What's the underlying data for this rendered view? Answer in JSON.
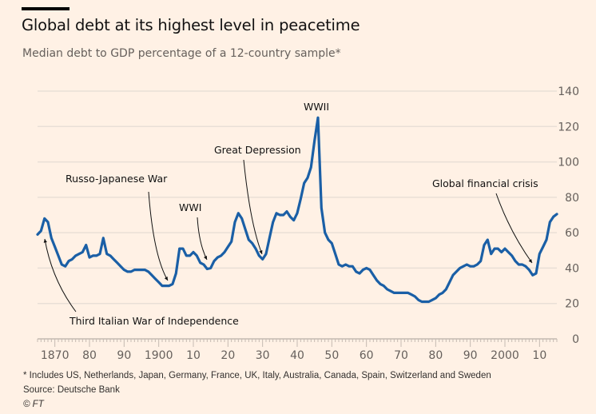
{
  "header": {
    "title": "Global debt at its highest level in peacetime",
    "subtitle": "Median debt to GDP percentage of a 12-country sample*"
  },
  "footer": {
    "note": "* Includes US, Netherlands, Japan, Germany, France, UK, Italy, Australia, Canada, Spain, Switzerland and Sweden",
    "source": "Source: Deutsche Bank",
    "copyright": "© FT"
  },
  "colors": {
    "background": "#fff1e5",
    "line": "#1a5fa6",
    "grid": "#e9dfd6",
    "axis_text": "#66605c"
  },
  "chart_data": {
    "type": "line",
    "title": "Global debt at its highest level in peacetime",
    "subtitle": "Median debt to GDP percentage of a 12-country sample*",
    "xlabel": "",
    "ylabel": "",
    "xlim": [
      1865,
      2015
    ],
    "ylim": [
      0,
      140
    ],
    "grid": true,
    "y_axis_side": "right",
    "y_ticks": [
      0,
      20,
      40,
      60,
      80,
      100,
      120,
      140
    ],
    "x_ticks": [
      {
        "year": 1870,
        "label": "1870"
      },
      {
        "year": 1880,
        "label": "80"
      },
      {
        "year": 1890,
        "label": "90"
      },
      {
        "year": 1900,
        "label": "1900"
      },
      {
        "year": 1910,
        "label": "10"
      },
      {
        "year": 1920,
        "label": "20"
      },
      {
        "year": 1930,
        "label": "30"
      },
      {
        "year": 1940,
        "label": "40"
      },
      {
        "year": 1950,
        "label": "50"
      },
      {
        "year": 1960,
        "label": "60"
      },
      {
        "year": 1970,
        "label": "70"
      },
      {
        "year": 1980,
        "label": "80"
      },
      {
        "year": 1990,
        "label": "90"
      },
      {
        "year": 2000,
        "label": "2000"
      },
      {
        "year": 2010,
        "label": "10"
      }
    ],
    "series": [
      {
        "name": "Median debt to GDP (%)",
        "x": [
          1865,
          1866,
          1867,
          1868,
          1869,
          1870,
          1871,
          1872,
          1873,
          1874,
          1875,
          1876,
          1877,
          1878,
          1879,
          1880,
          1881,
          1882,
          1883,
          1884,
          1885,
          1886,
          1887,
          1888,
          1889,
          1890,
          1891,
          1892,
          1893,
          1894,
          1895,
          1896,
          1897,
          1898,
          1899,
          1900,
          1901,
          1902,
          1903,
          1904,
          1905,
          1906,
          1907,
          1908,
          1909,
          1910,
          1911,
          1912,
          1913,
          1914,
          1915,
          1916,
          1917,
          1918,
          1919,
          1920,
          1921,
          1922,
          1923,
          1924,
          1925,
          1926,
          1927,
          1928,
          1929,
          1930,
          1931,
          1932,
          1933,
          1934,
          1935,
          1936,
          1937,
          1938,
          1939,
          1940,
          1941,
          1942,
          1943,
          1944,
          1945,
          1946,
          1947,
          1948,
          1949,
          1950,
          1951,
          1952,
          1953,
          1954,
          1955,
          1956,
          1957,
          1958,
          1959,
          1960,
          1961,
          1962,
          1963,
          1964,
          1965,
          1966,
          1967,
          1968,
          1969,
          1970,
          1971,
          1972,
          1973,
          1974,
          1975,
          1976,
          1977,
          1978,
          1979,
          1980,
          1981,
          1982,
          1983,
          1984,
          1985,
          1986,
          1987,
          1988,
          1989,
          1990,
          1991,
          1992,
          1993,
          1994,
          1995,
          1996,
          1997,
          1998,
          1999,
          2000,
          2001,
          2002,
          2003,
          2004,
          2005,
          2006,
          2007,
          2008,
          2009,
          2010,
          2011,
          2012,
          2013,
          2014,
          2015
        ],
        "values": [
          59,
          61,
          68,
          66,
          57,
          52,
          47,
          42,
          41,
          44,
          45,
          47,
          48,
          49,
          53,
          46,
          47,
          47,
          48,
          57,
          48,
          47,
          45,
          43,
          41,
          39,
          38,
          38,
          39,
          39,
          39,
          39,
          38,
          36,
          34,
          32,
          30,
          30,
          30,
          31,
          37,
          51,
          51,
          47,
          47,
          49,
          47,
          43,
          42,
          39.5,
          40,
          44,
          46,
          47,
          49,
          52,
          55,
          66,
          71,
          68,
          62,
          56,
          54,
          51,
          47,
          45,
          48,
          57,
          66,
          71,
          70,
          70,
          72,
          69,
          67,
          71,
          79,
          88,
          91,
          97,
          112,
          125,
          74,
          60,
          56,
          54,
          48,
          42,
          41,
          42,
          41,
          41,
          38,
          37,
          39,
          40,
          39,
          36,
          33,
          31,
          30,
          28,
          27,
          26,
          26,
          26,
          26,
          26,
          25,
          24,
          22,
          21,
          21,
          21,
          22,
          23,
          25,
          26,
          28,
          32,
          36,
          38,
          40,
          41,
          42,
          41,
          41,
          42,
          44,
          53,
          56,
          48,
          51,
          51,
          49,
          51,
          49,
          47,
          44,
          42,
          42,
          41,
          39,
          36,
          37,
          48,
          52,
          56,
          66,
          69,
          70.5
        ]
      }
    ],
    "annotations": [
      {
        "label": "Third Italian War of Independence",
        "year": 1866,
        "value": 61
      },
      {
        "label": "Russo-Japanese War",
        "year": 1904,
        "value": 31
      },
      {
        "label": "WWI",
        "year": 1914,
        "value": 39.5
      },
      {
        "label": "Great Depression",
        "year": 1930,
        "value": 45
      },
      {
        "label": "WWII",
        "year": 1946,
        "value": 125
      },
      {
        "label": "Global financial crisis",
        "year": 2008,
        "value": 36
      }
    ]
  }
}
